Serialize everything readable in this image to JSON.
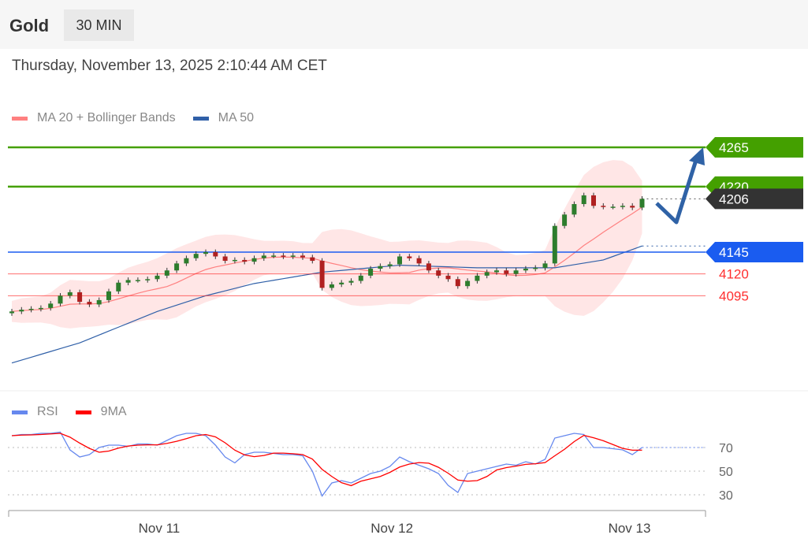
{
  "header": {
    "title": "Gold",
    "timeframe": "30 MIN",
    "datetime": "Thursday, November 13, 2025 2:10:44 AM CET"
  },
  "colors": {
    "green": "#44a000",
    "blue": "#1a5cf0",
    "red": "#ff3030",
    "current": "#333333",
    "ma20": "#ff8080",
    "ma50": "#3060a8",
    "rsi": "#6688ee",
    "rsi_ma": "#ff0000",
    "up": "#2d7d2d",
    "down": "#b02020"
  },
  "chart_data": [
    {
      "type": "candlestick",
      "title": "Gold 30 MIN",
      "legend": [
        {
          "name": "MA 20 + Bollinger Bands"
        },
        {
          "name": "MA 50"
        }
      ],
      "ylim": [
        4000,
        4285
      ],
      "closes": [
        4077,
        4079,
        4080,
        4081,
        4086,
        4095,
        4099,
        4088,
        4085,
        4090,
        4100,
        4110,
        4113,
        4113,
        4114,
        4118,
        4124,
        4132,
        4138,
        4143,
        4145,
        4140,
        4135,
        4136,
        4134,
        4138,
        4141,
        4141,
        4140,
        4141,
        4139,
        4135,
        4104,
        4108,
        4110,
        4112,
        4118,
        4126,
        4129,
        4131,
        4140,
        4138,
        4132,
        4124,
        4118,
        4114,
        4106,
        4112,
        4118,
        4122,
        4124,
        4120,
        4124,
        4126,
        4127,
        4132,
        4175,
        4188,
        4200,
        4210,
        4198,
        4197,
        4197,
        4198,
        4196,
        4206
      ],
      "ma50_anchors": [
        [
          0,
          4018
        ],
        [
          7,
          4041
        ],
        [
          15,
          4077
        ],
        [
          20,
          4095
        ],
        [
          25,
          4109
        ],
        [
          32,
          4122
        ],
        [
          40,
          4130
        ],
        [
          48,
          4127
        ],
        [
          56,
          4127
        ],
        [
          61,
          4136
        ],
        [
          65,
          4152
        ]
      ],
      "levels": [
        {
          "label": "4265",
          "value": 4265,
          "kind": "resistance"
        },
        {
          "label": "4220",
          "value": 4220,
          "kind": "resistance"
        },
        {
          "label": "4206",
          "value": 4206,
          "kind": "current"
        },
        {
          "label": "4145",
          "value": 4145,
          "kind": "support"
        },
        {
          "label": "4120",
          "value": 4120,
          "kind": "minor"
        },
        {
          "label": "4095",
          "value": 4095,
          "kind": "minor"
        }
      ],
      "x_ticks": [
        {
          "label": "Nov 11",
          "index": 15.2
        },
        {
          "label": "Nov 12",
          "index": 39.2
        },
        {
          "label": "Nov 13",
          "index": 63.7
        }
      ]
    },
    {
      "type": "line",
      "title": "RSI",
      "legend": [
        {
          "name": "RSI"
        },
        {
          "name": "9MA"
        }
      ],
      "ylim": [
        20,
        90
      ],
      "y_ticks": [
        70,
        50,
        30
      ],
      "rsi": [
        80,
        81,
        81,
        82,
        82,
        83,
        68,
        62,
        64,
        70,
        72,
        72,
        71,
        73,
        73,
        72,
        76,
        80,
        82,
        82,
        80,
        72,
        62,
        57,
        64,
        66,
        66,
        65,
        64,
        64,
        63,
        50,
        29,
        40,
        42,
        40,
        44,
        48,
        50,
        54,
        62,
        58,
        55,
        52,
        48,
        38,
        32,
        48,
        50,
        52,
        54,
        56,
        55,
        58,
        56,
        60,
        78,
        80,
        82,
        81,
        70,
        70,
        69,
        68,
        64,
        70
      ]
    }
  ]
}
